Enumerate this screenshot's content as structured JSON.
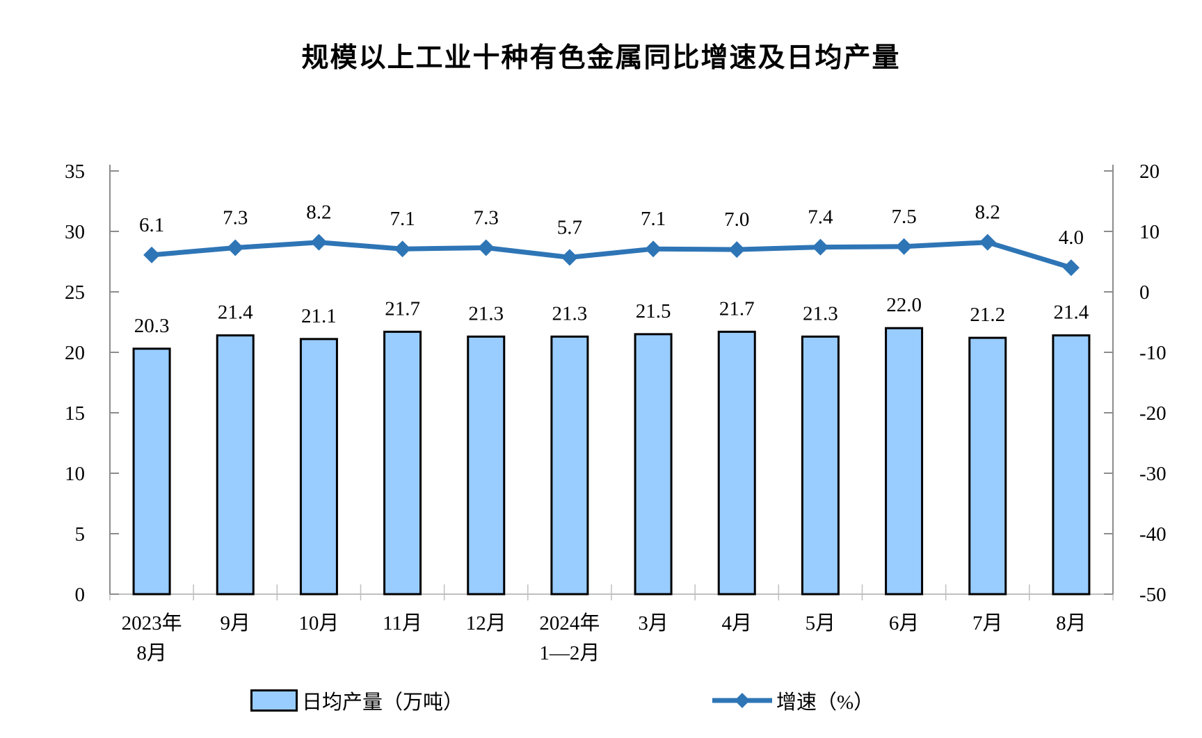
{
  "title": "规模以上工业十种有色金属同比增速及日均产量",
  "chart_data": {
    "type": "bar+line",
    "title": "规模以上工业十种有色金属同比增速及日均产量",
    "categories": [
      [
        "2023年",
        "8月"
      ],
      [
        "9月",
        ""
      ],
      [
        "10月",
        ""
      ],
      [
        "11月",
        ""
      ],
      [
        "12月",
        ""
      ],
      [
        "2024年",
        "1—2月"
      ],
      [
        "3月",
        ""
      ],
      [
        "4月",
        ""
      ],
      [
        "5月",
        ""
      ],
      [
        "6月",
        ""
      ],
      [
        "7月",
        ""
      ],
      [
        "8月",
        ""
      ]
    ],
    "series": [
      {
        "name": "日均产量（万吨）",
        "type": "bar",
        "axis": "left",
        "values": [
          20.3,
          21.4,
          21.1,
          21.7,
          21.3,
          21.3,
          21.5,
          21.7,
          21.3,
          22.0,
          21.2,
          21.4
        ]
      },
      {
        "name": "增速（%）",
        "type": "line",
        "axis": "right",
        "values": [
          6.1,
          7.3,
          8.2,
          7.1,
          7.3,
          5.7,
          7.1,
          7.0,
          7.4,
          7.5,
          8.2,
          4.0
        ]
      }
    ],
    "axis_left": {
      "min": 0,
      "max": 35,
      "step": 5,
      "ticks": [
        35,
        30,
        25,
        20,
        15,
        10,
        5,
        0
      ]
    },
    "axis_right": {
      "min": -50,
      "max": 20,
      "step": 10,
      "ticks": [
        20,
        10,
        0,
        -10,
        -20,
        -30,
        -40,
        -50
      ]
    },
    "grid": false,
    "legend_position": "bottom",
    "value_label_decimals": 1
  },
  "legend": {
    "bar_label": "日均产量（万吨）",
    "line_label": "增速（%）"
  },
  "colors": {
    "bar_fill": "#99CCFF",
    "bar_border": "#000000",
    "line": "#2E75B6",
    "axis": "#8C8C8C",
    "x_axis": "#BFBFBF",
    "boundary_tick": "#BFBFBF",
    "text": "#000000"
  }
}
